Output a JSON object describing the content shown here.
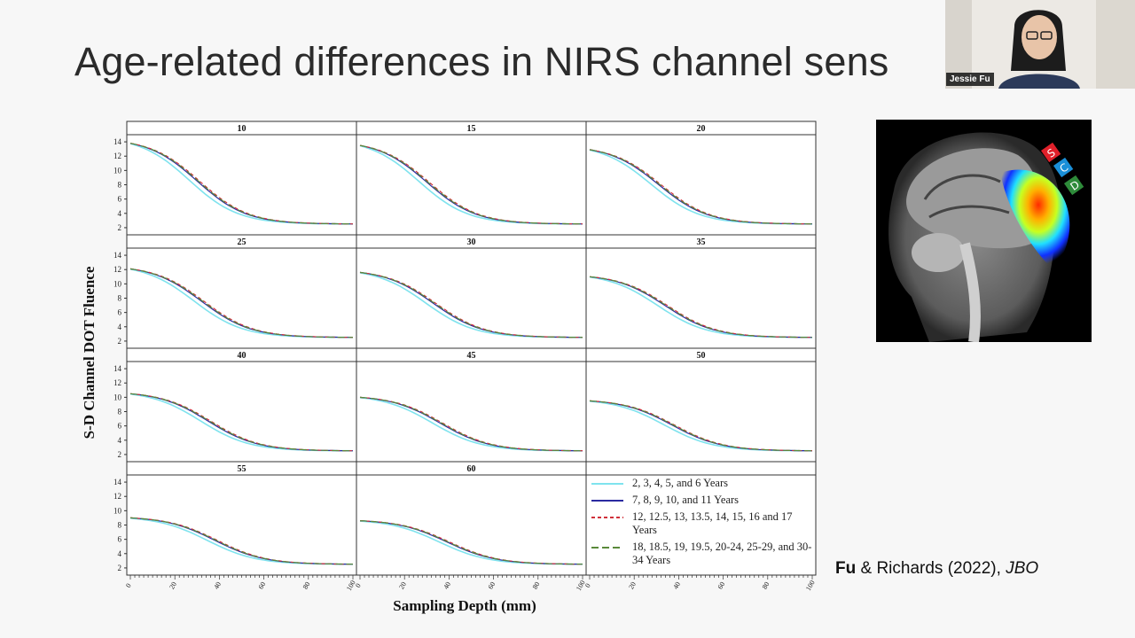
{
  "slide": {
    "title": "Age-related differences in NIRS channel sens",
    "citation_author": "Fu",
    "citation_rest": " & Richards (2022), ",
    "citation_journal": "JBO"
  },
  "webcam": {
    "name": "Jessie Fu"
  },
  "mri": {
    "labels": [
      "S",
      "C",
      "D"
    ],
    "colors": {
      "S": "#e0202a",
      "C": "#1a8fd8",
      "D": "#2e8b3a"
    }
  },
  "chart_data": {
    "type": "line",
    "ylabel": "S-D Channel DOT Fluence",
    "xlabel": "Sampling Depth (mm)",
    "x_ticks": [
      0,
      20,
      40,
      60,
      80,
      100
    ],
    "y_ticks": [
      2,
      4,
      6,
      8,
      10,
      12,
      14
    ],
    "xlim": [
      0,
      100
    ],
    "ylim": [
      1,
      15
    ],
    "panels": [
      {
        "label": "10",
        "peak": 13.8,
        "shift": 0.0
      },
      {
        "label": "15",
        "peak": 13.5,
        "shift": 0.0
      },
      {
        "label": "20",
        "peak": 12.9,
        "shift": 1.0
      },
      {
        "label": "25",
        "peak": 12.1,
        "shift": 2.0
      },
      {
        "label": "30",
        "peak": 11.6,
        "shift": 3.0
      },
      {
        "label": "35",
        "peak": 11.0,
        "shift": 4.0
      },
      {
        "label": "40",
        "peak": 10.5,
        "shift": 5.0
      },
      {
        "label": "45",
        "peak": 10.0,
        "shift": 6.0
      },
      {
        "label": "50",
        "peak": 9.5,
        "shift": 7.0
      },
      {
        "label": "55",
        "peak": 9.0,
        "shift": 8.0
      },
      {
        "label": "60",
        "peak": 8.6,
        "shift": 9.0
      }
    ],
    "series": [
      {
        "name": "2, 3, 4, 5, and 6 Years",
        "color": "#7fe3ee",
        "dash": "",
        "offset": -3.5
      },
      {
        "name": "7, 8, 9, 10, and 11 Years",
        "color": "#2a2aa0",
        "dash": "",
        "offset": 0
      },
      {
        "name": "12, 12.5, 13, 13.5, 14, 15, 16 and 17 Years",
        "color": "#d0303a",
        "dash": "4,3",
        "offset": 1.2
      },
      {
        "name": "18, 18.5, 19, 19.5, 20-24, 25-29, and 30-34 Years",
        "color": "#5a8a3a",
        "dash": "8,4",
        "offset": 0.6
      }
    ]
  }
}
